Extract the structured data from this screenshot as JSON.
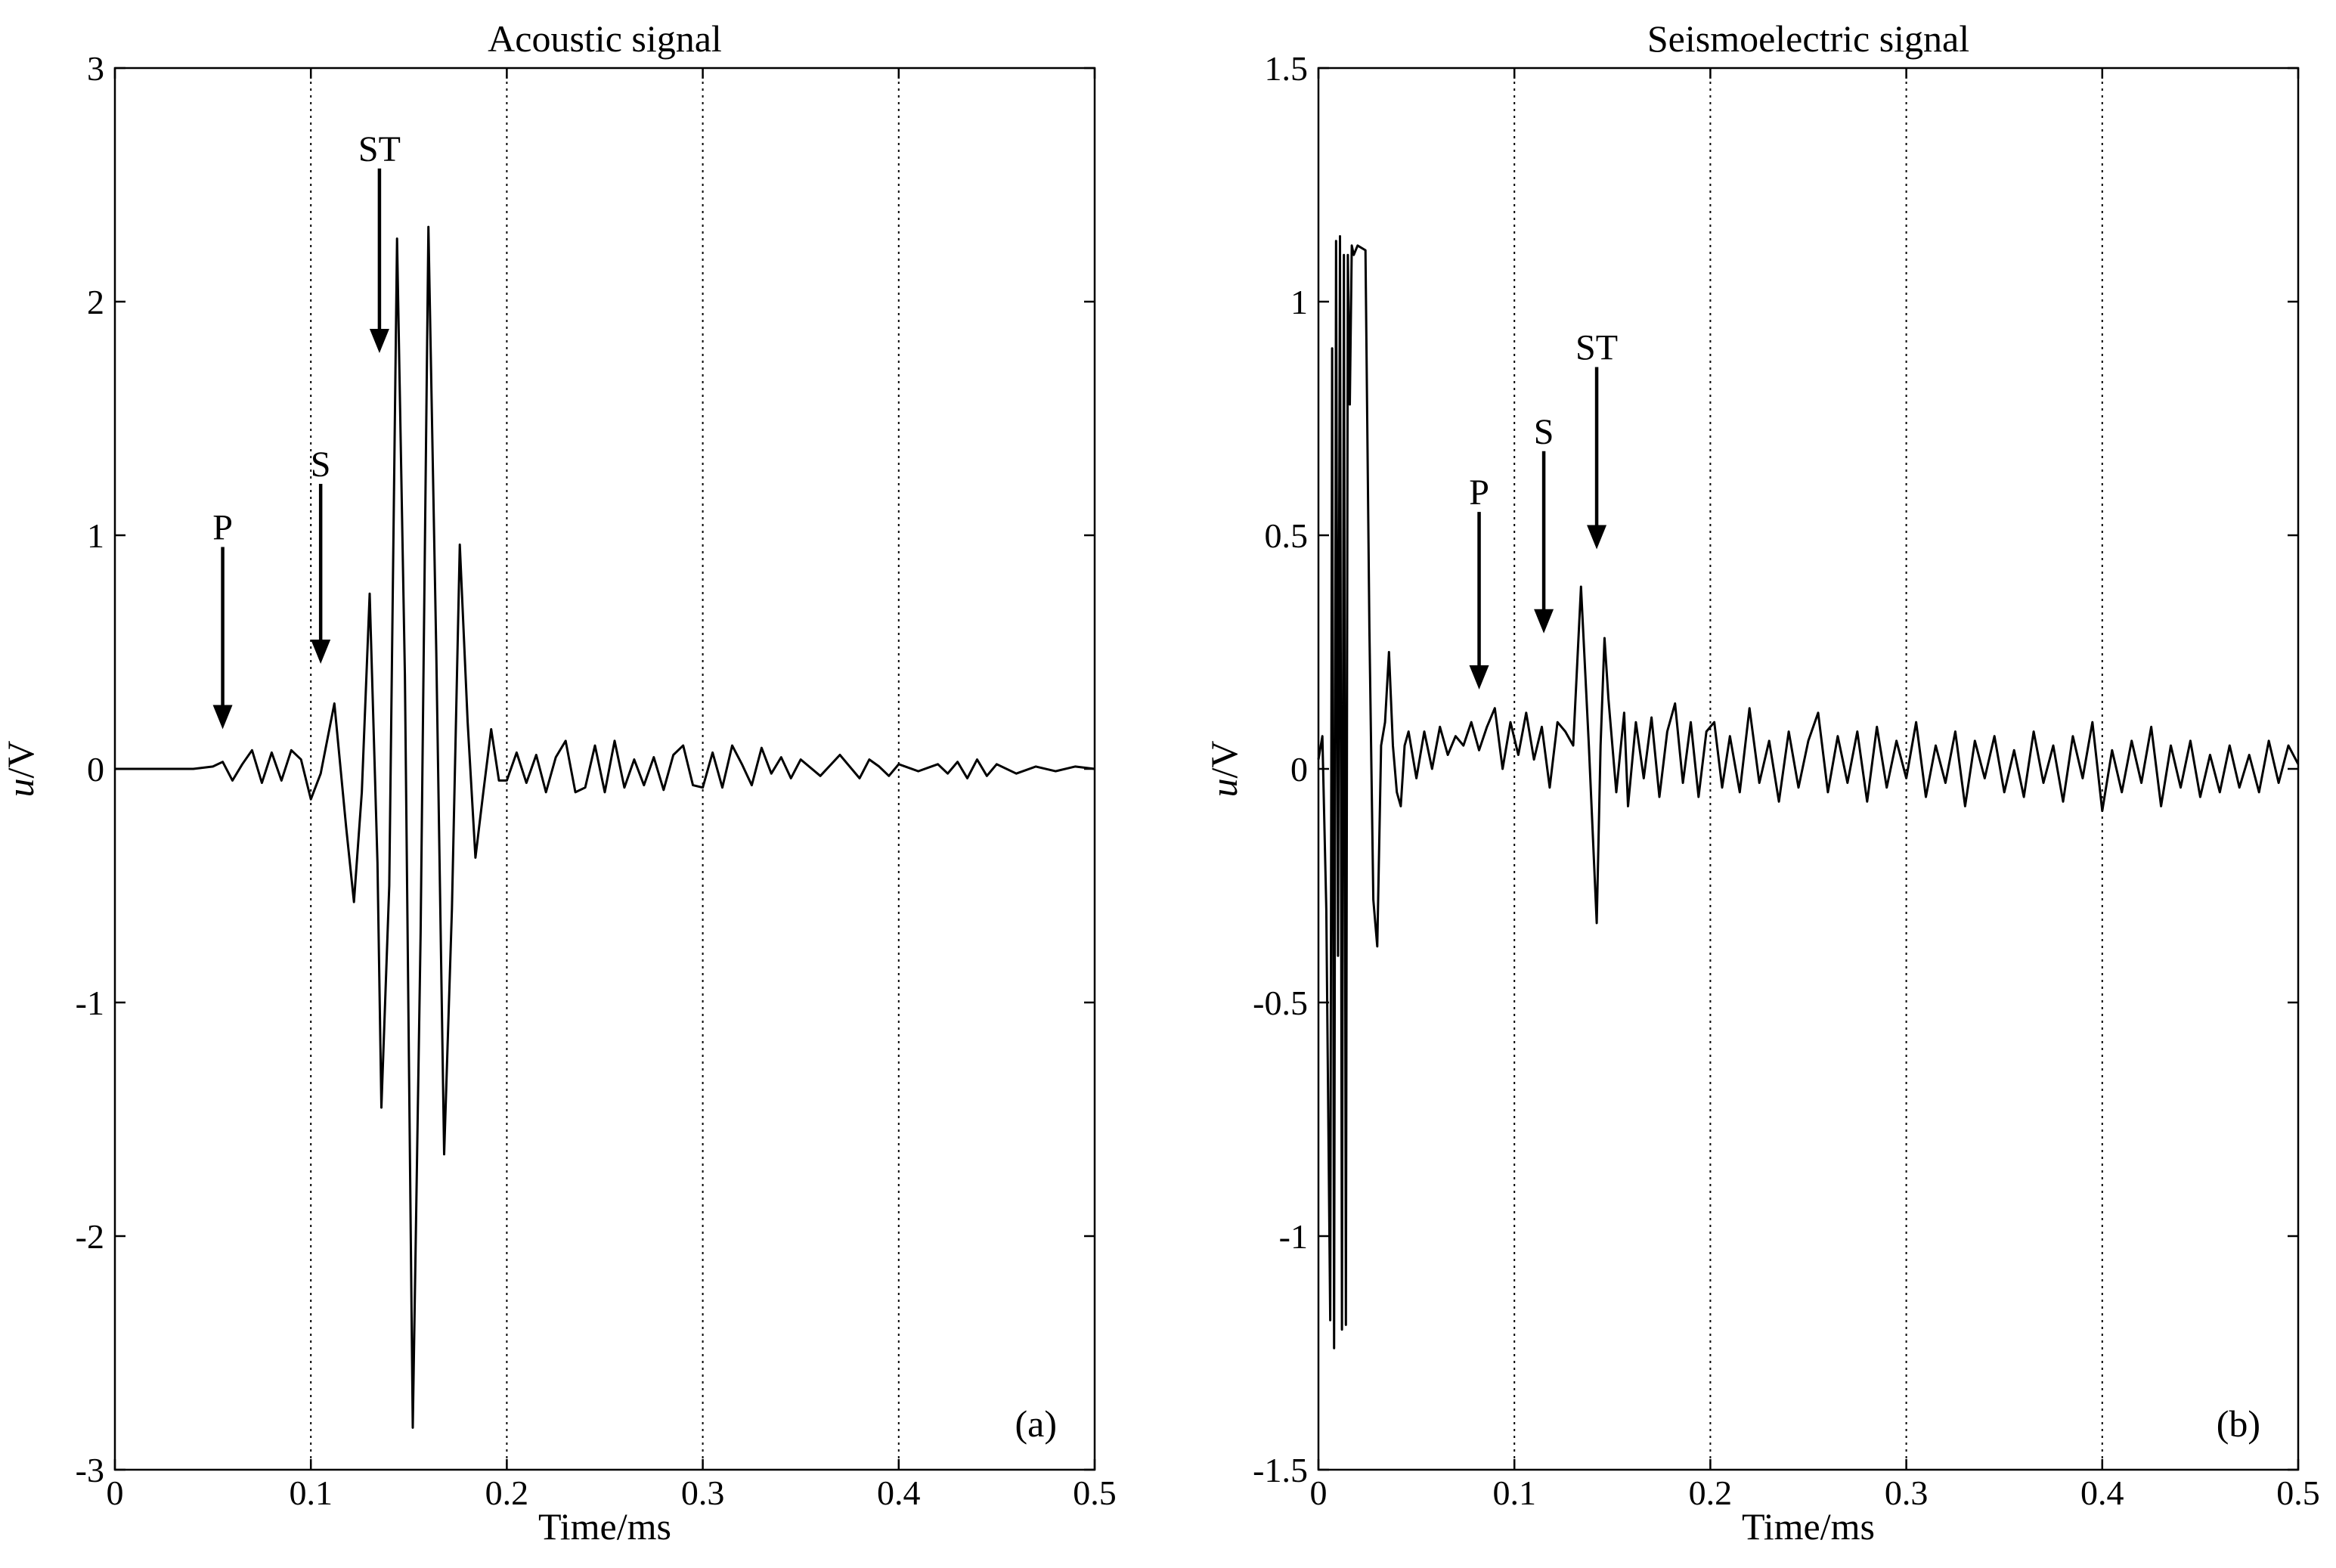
{
  "chart_data": [
    {
      "type": "line",
      "panel": "(a)",
      "title": "Acoustic signal",
      "xlabel": "Time/ms",
      "ylabel_italic": "u",
      "ylabel_rest": "/V",
      "xlim": [
        0,
        0.5
      ],
      "ylim": [
        -3,
        3
      ],
      "xticks": [
        0,
        0.1,
        0.2,
        0.3,
        0.4,
        0.5
      ],
      "xtick_labels": [
        "0",
        "0.1",
        "0.2",
        "0.3",
        "0.4",
        "0.5"
      ],
      "yticks": [
        -3,
        -2,
        -1,
        0,
        1,
        2,
        3
      ],
      "ytick_labels": [
        "-3",
        "-2",
        "-1",
        "0",
        "1",
        "2",
        "3"
      ],
      "grid": "x-dotted",
      "series": [
        {
          "x": [
            0,
            0.02,
            0.04,
            0.05,
            0.055,
            0.06,
            0.065,
            0.07,
            0.075,
            0.08,
            0.085,
            0.09,
            0.095,
            0.1,
            0.105,
            0.112,
            0.118,
            0.122,
            0.126,
            0.13,
            0.134,
            0.136,
            0.14,
            0.144,
            0.148,
            0.152,
            0.156,
            0.16,
            0.164,
            0.168,
            0.172,
            0.176,
            0.18,
            0.184,
            0.188,
            0.192,
            0.196,
            0.2,
            0.205,
            0.21,
            0.215,
            0.22,
            0.225,
            0.23,
            0.235,
            0.24,
            0.245,
            0.25,
            0.255,
            0.26,
            0.265,
            0.27,
            0.275,
            0.28,
            0.285,
            0.29,
            0.295,
            0.3,
            0.305,
            0.31,
            0.315,
            0.32,
            0.325,
            0.33,
            0.335,
            0.34,
            0.345,
            0.35,
            0.36,
            0.37,
            0.38,
            0.385,
            0.39,
            0.395,
            0.4,
            0.41,
            0.42,
            0.425,
            0.43,
            0.435,
            0.44,
            0.445,
            0.45,
            0.46,
            0.47,
            0.48,
            0.49,
            0.5
          ],
          "y": [
            0,
            0,
            0,
            0.01,
            0.03,
            -0.05,
            0.02,
            0.08,
            -0.06,
            0.07,
            -0.05,
            0.08,
            0.04,
            -0.13,
            -0.02,
            0.28,
            -0.25,
            -0.57,
            -0.1,
            0.75,
            -0.4,
            -1.45,
            -0.5,
            2.27,
            0.4,
            -2.82,
            -0.7,
            2.32,
            0.5,
            -1.65,
            -0.6,
            0.96,
            0.2,
            -0.38,
            -0.1,
            0.17,
            -0.05,
            -0.05,
            0.07,
            -0.06,
            0.06,
            -0.1,
            0.05,
            0.12,
            -0.1,
            -0.08,
            0.1,
            -0.1,
            0.12,
            -0.08,
            0.04,
            -0.07,
            0.05,
            -0.09,
            0.06,
            0.1,
            -0.07,
            -0.08,
            0.07,
            -0.08,
            0.1,
            0.02,
            -0.07,
            0.09,
            -0.02,
            0.05,
            -0.04,
            0.04,
            -0.03,
            0.06,
            -0.04,
            0.04,
            0.01,
            -0.03,
            0.02,
            -0.01,
            0.02,
            -0.02,
            0.03,
            -0.04,
            0.04,
            -0.03,
            0.02,
            -0.02,
            0.01,
            -0.01,
            0.01,
            0
          ]
        }
      ],
      "annotations": [
        {
          "text": "P",
          "x": 0.055,
          "y_tail": 0.95,
          "y_head": 0.17
        },
        {
          "text": "S",
          "x": 0.105,
          "y_tail": 1.22,
          "y_head": 0.45
        },
        {
          "text": "ST",
          "x": 0.135,
          "y_tail": 2.57,
          "y_head": 1.78
        }
      ]
    },
    {
      "type": "line",
      "panel": "(b)",
      "title": "Seismoelectric signal",
      "xlabel": "Time/ms",
      "ylabel_italic": "u",
      "ylabel_rest": "/V",
      "xlim": [
        0,
        0.5
      ],
      "ylim": [
        -1.5,
        1.5
      ],
      "xticks": [
        0,
        0.1,
        0.2,
        0.3,
        0.4,
        0.5
      ],
      "xtick_labels": [
        "0",
        "0.1",
        "0.2",
        "0.3",
        "0.4",
        "0.5"
      ],
      "yticks": [
        -1.5,
        -1,
        -0.5,
        0,
        0.5,
        1,
        1.5
      ],
      "ytick_labels": [
        "-1.5",
        "-1",
        "-0.5",
        "0",
        "0.5",
        "1",
        "1.5"
      ],
      "grid": "x-dotted",
      "series": [
        {
          "x": [
            0,
            0.002,
            0.004,
            0.006,
            0.007,
            0.008,
            0.009,
            0.01,
            0.011,
            0.012,
            0.013,
            0.014,
            0.015,
            0.016,
            0.017,
            0.018,
            0.02,
            0.024,
            0.026,
            0.028,
            0.03,
            0.032,
            0.034,
            0.036,
            0.038,
            0.04,
            0.042,
            0.044,
            0.046,
            0.05,
            0.054,
            0.058,
            0.062,
            0.066,
            0.07,
            0.074,
            0.078,
            0.082,
            0.086,
            0.09,
            0.094,
            0.098,
            0.102,
            0.106,
            0.11,
            0.114,
            0.118,
            0.122,
            0.126,
            0.13,
            0.134,
            0.138,
            0.142,
            0.144,
            0.146,
            0.148,
            0.152,
            0.156,
            0.158,
            0.162,
            0.166,
            0.17,
            0.174,
            0.178,
            0.182,
            0.186,
            0.19,
            0.194,
            0.198,
            0.202,
            0.206,
            0.21,
            0.215,
            0.22,
            0.225,
            0.23,
            0.235,
            0.24,
            0.245,
            0.25,
            0.255,
            0.26,
            0.265,
            0.27,
            0.275,
            0.28,
            0.285,
            0.29,
            0.295,
            0.3,
            0.305,
            0.31,
            0.315,
            0.32,
            0.325,
            0.33,
            0.335,
            0.34,
            0.345,
            0.35,
            0.355,
            0.36,
            0.365,
            0.37,
            0.375,
            0.38,
            0.385,
            0.39,
            0.395,
            0.4,
            0.405,
            0.41,
            0.415,
            0.42,
            0.425,
            0.43,
            0.435,
            0.44,
            0.445,
            0.45,
            0.455,
            0.46,
            0.465,
            0.47,
            0.475,
            0.48,
            0.485,
            0.49,
            0.495,
            0.5
          ],
          "y": [
            0.02,
            0.07,
            -0.3,
            -1.18,
            0.9,
            -1.24,
            1.13,
            -0.4,
            1.14,
            -1.2,
            1.1,
            -1.19,
            1.1,
            0.78,
            1.12,
            1.1,
            1.12,
            1.11,
            0.3,
            -0.28,
            -0.38,
            0.05,
            0.1,
            0.25,
            0.05,
            -0.05,
            -0.08,
            0.05,
            0.08,
            -0.02,
            0.08,
            0.0,
            0.09,
            0.03,
            0.07,
            0.05,
            0.1,
            0.04,
            0.09,
            0.13,
            0.0,
            0.1,
            0.03,
            0.12,
            0.02,
            0.09,
            -0.04,
            0.1,
            0.08,
            0.05,
            0.39,
            0.05,
            -0.33,
            0.05,
            0.28,
            0.15,
            -0.05,
            0.12,
            -0.08,
            0.1,
            -0.02,
            0.11,
            -0.06,
            0.08,
            0.14,
            -0.03,
            0.1,
            -0.06,
            0.08,
            0.1,
            -0.04,
            0.07,
            -0.05,
            0.13,
            -0.03,
            0.06,
            -0.07,
            0.08,
            -0.04,
            0.06,
            0.12,
            -0.05,
            0.07,
            -0.03,
            0.08,
            -0.07,
            0.09,
            -0.04,
            0.06,
            -0.02,
            0.1,
            -0.06,
            0.05,
            -0.03,
            0.08,
            -0.08,
            0.06,
            -0.02,
            0.07,
            -0.05,
            0.04,
            -0.06,
            0.08,
            -0.03,
            0.05,
            -0.07,
            0.07,
            -0.02,
            0.1,
            -0.09,
            0.04,
            -0.05,
            0.06,
            -0.03,
            0.09,
            -0.08,
            0.05,
            -0.04,
            0.06,
            -0.06,
            0.03,
            -0.05,
            0.05,
            -0.04,
            0.03,
            -0.05,
            0.06,
            -0.03,
            0.05,
            0.01
          ]
        }
      ],
      "annotations": [
        {
          "text": "P",
          "x": 0.082,
          "y_tail": 0.55,
          "y_head": 0.17
        },
        {
          "text": "S",
          "x": 0.115,
          "y_tail": 0.68,
          "y_head": 0.29
        },
        {
          "text": "ST",
          "x": 0.142,
          "y_tail": 0.86,
          "y_head": 0.47
        }
      ]
    }
  ]
}
